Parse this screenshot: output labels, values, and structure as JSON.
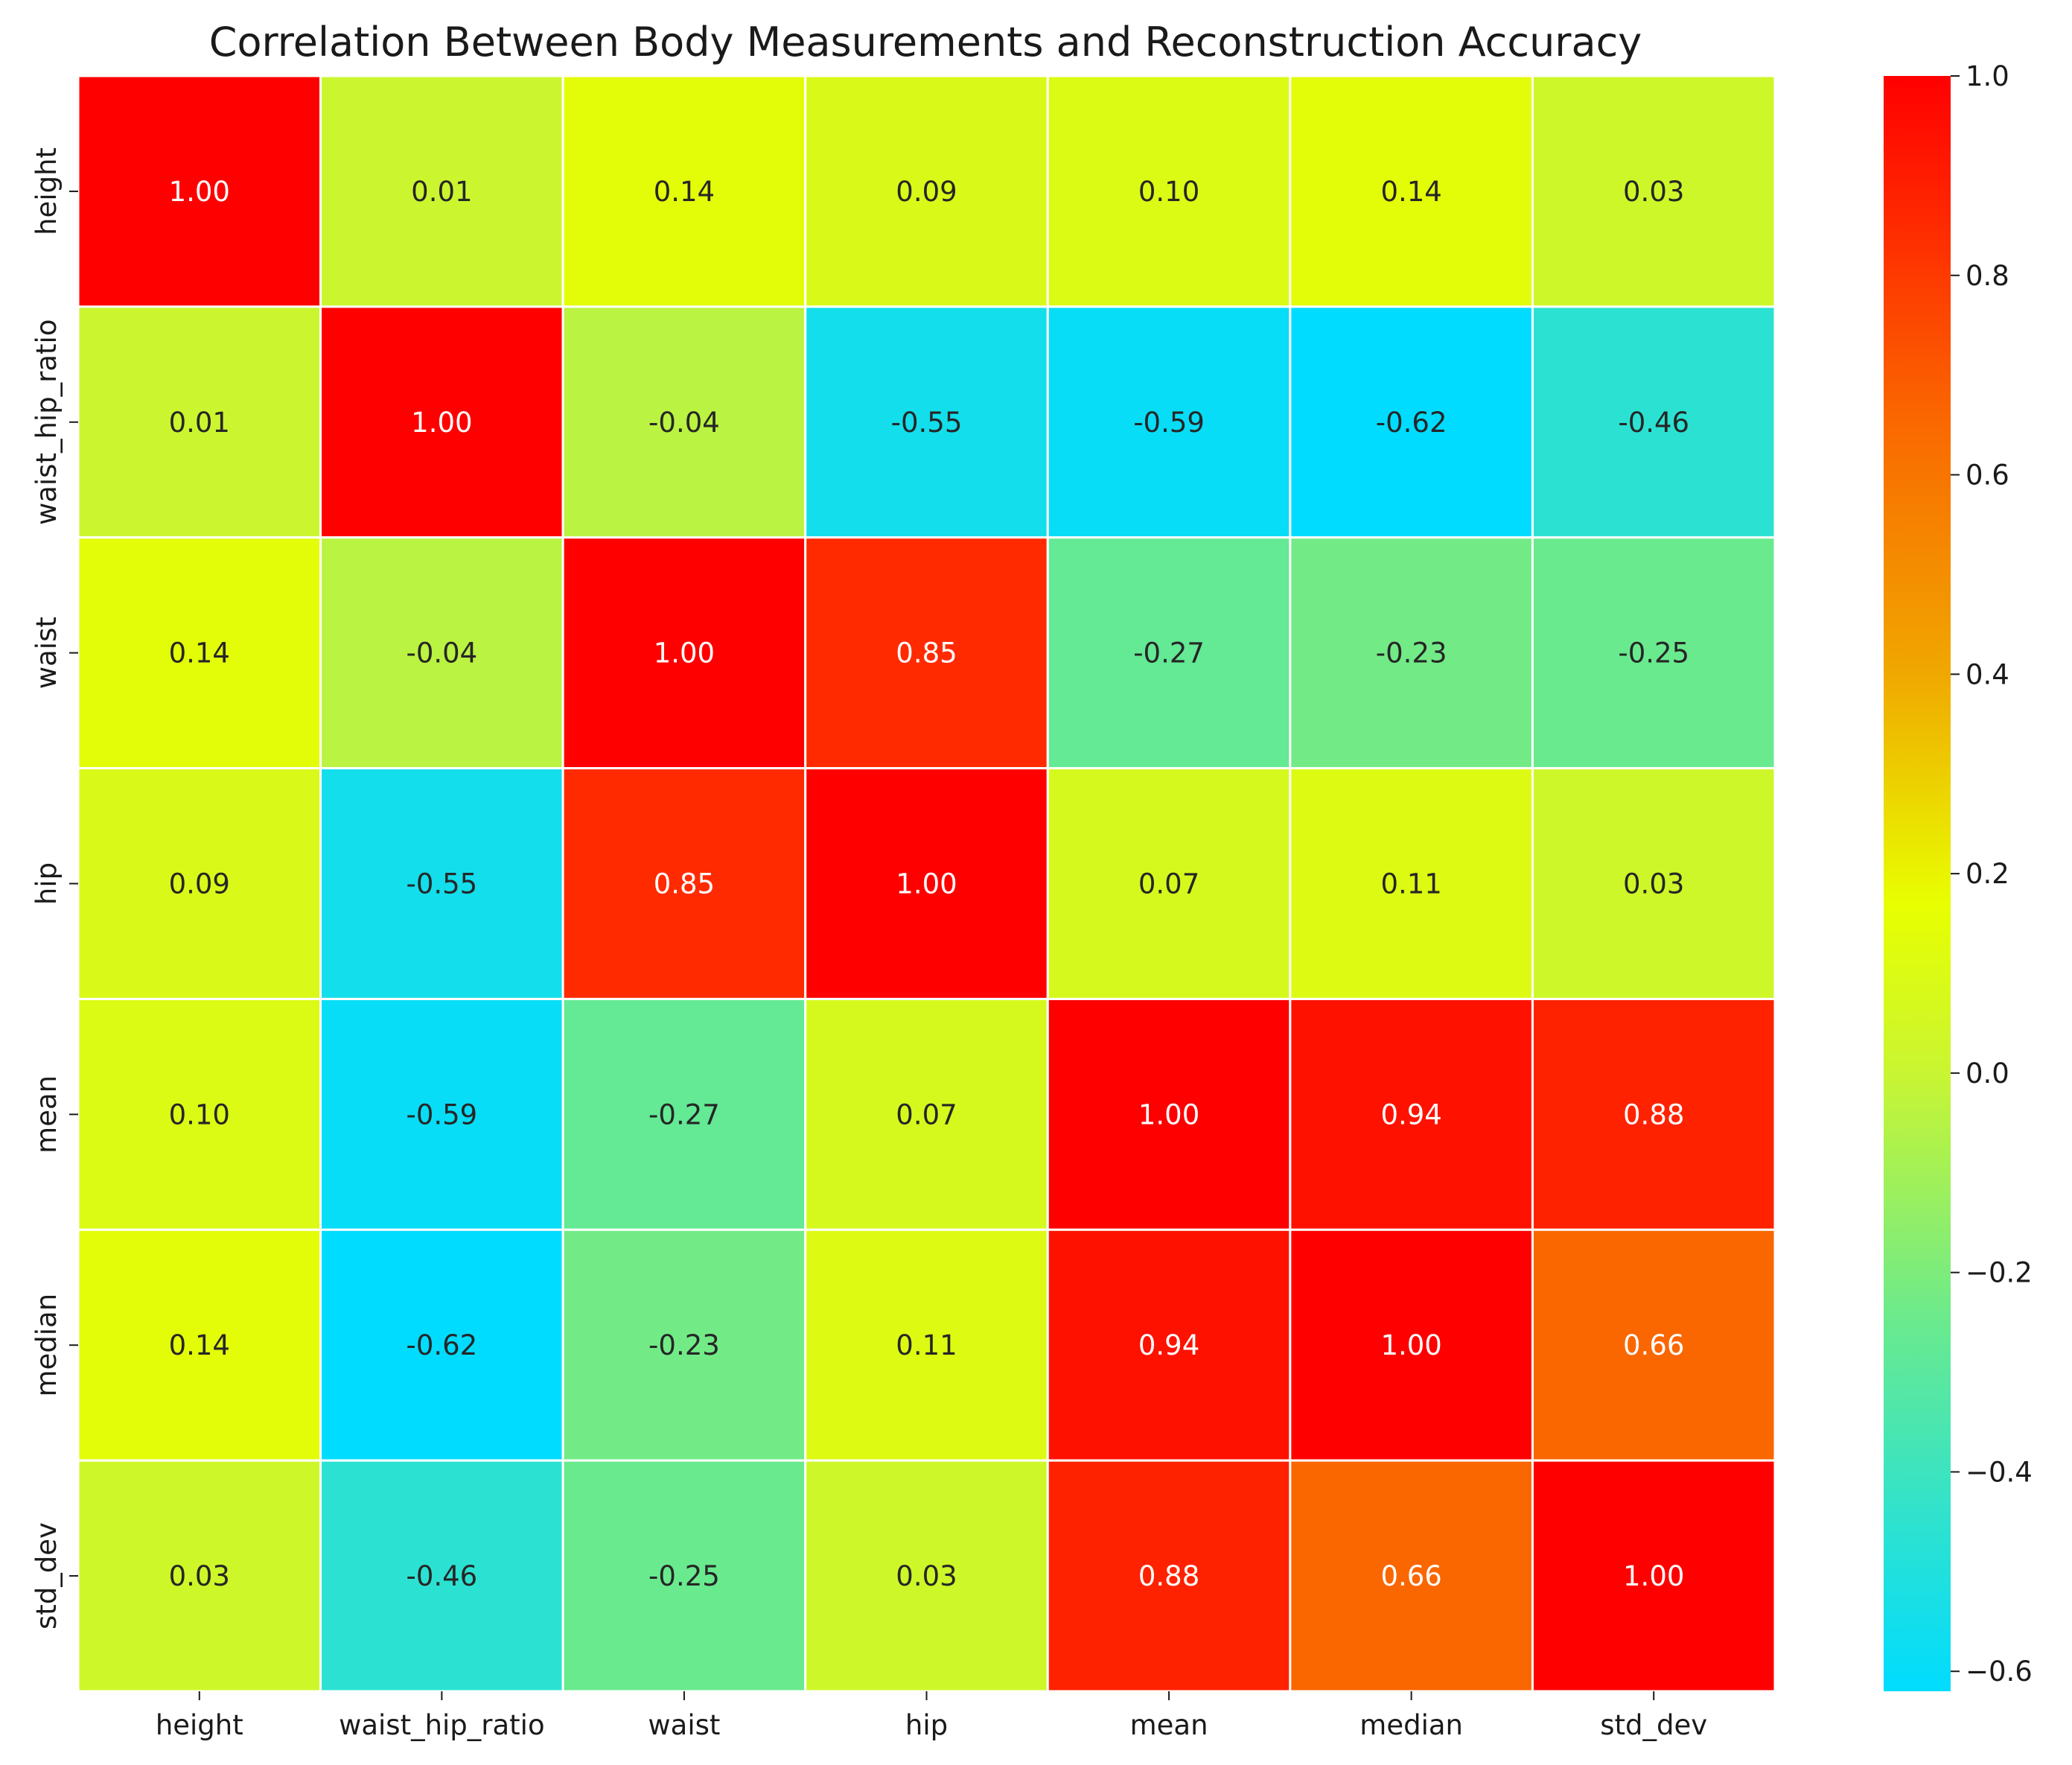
{
  "chart_data": {
    "type": "heatmap",
    "title": "Correlation Between Body Measurements and Reconstruction Accuracy",
    "xlabel": "",
    "ylabel": "",
    "row_labels": [
      "height",
      "waist_hip_ratio",
      "waist",
      "hip",
      "mean",
      "median",
      "std_dev"
    ],
    "col_labels": [
      "height",
      "waist_hip_ratio",
      "waist",
      "hip",
      "mean",
      "median",
      "std_dev"
    ],
    "values": [
      [
        1.0,
        0.01,
        0.14,
        0.09,
        0.1,
        0.14,
        0.03
      ],
      [
        0.01,
        1.0,
        -0.04,
        -0.55,
        -0.59,
        -0.62,
        -0.46
      ],
      [
        0.14,
        -0.04,
        1.0,
        0.85,
        -0.27,
        -0.23,
        -0.25
      ],
      [
        0.09,
        -0.55,
        0.85,
        1.0,
        0.07,
        0.11,
        0.03
      ],
      [
        0.1,
        -0.59,
        -0.27,
        0.07,
        1.0,
        0.94,
        0.88
      ],
      [
        0.14,
        -0.62,
        -0.23,
        0.11,
        0.94,
        1.0,
        0.66
      ],
      [
        0.03,
        -0.46,
        -0.25,
        0.03,
        0.88,
        0.66,
        1.0
      ]
    ],
    "value_format": "0.00",
    "color_range": [
      -0.62,
      1.0
    ],
    "colorbar_ticks": [
      "1.0",
      "0.8",
      "0.6",
      "0.4",
      "0.2",
      "0.0",
      "−0.2",
      "−0.4",
      "−0.6"
    ],
    "colorbar_tick_values": [
      1.0,
      0.8,
      0.6,
      0.4,
      0.2,
      0.0,
      -0.2,
      -0.4,
      -0.6
    ],
    "colormap": [
      {
        "v": -0.62,
        "color": "#00dcff"
      },
      {
        "v": -0.45,
        "color": "#2ee2cf"
      },
      {
        "v": -0.25,
        "color": "#6aea8e"
      },
      {
        "v": 0.0,
        "color": "#c9f532"
      },
      {
        "v": 0.17,
        "color": "#e8ff00"
      },
      {
        "v": 0.4,
        "color": "#f0a800"
      },
      {
        "v": 0.66,
        "color": "#fa6600"
      },
      {
        "v": 0.85,
        "color": "#ff2a00"
      },
      {
        "v": 1.0,
        "color": "#ff0000"
      }
    ],
    "cell_gridlines": "#ffffff",
    "text_color_dark": "#262626",
    "text_color_light": "#ffffff"
  }
}
